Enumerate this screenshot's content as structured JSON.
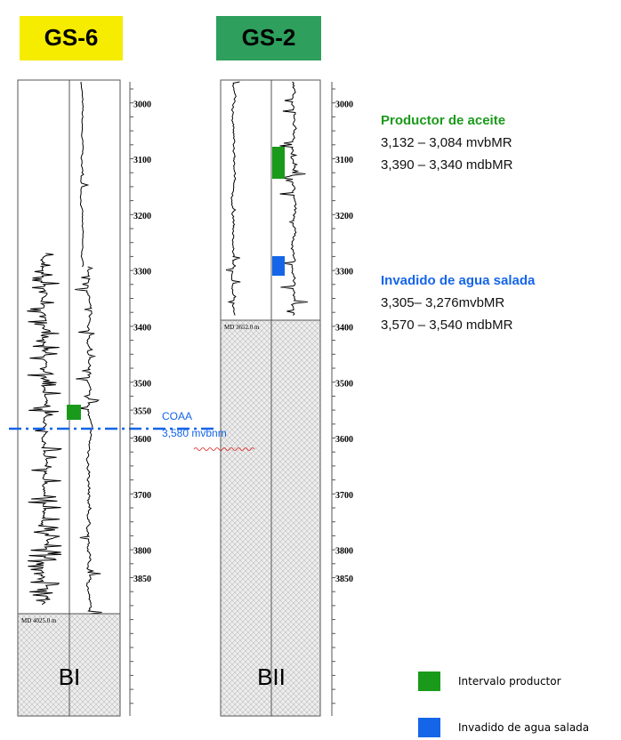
{
  "wells": [
    {
      "name": "GS-6",
      "depths": [
        3000,
        3100,
        3200,
        3300,
        3400,
        3500,
        3550,
        3600,
        3700,
        3800,
        3850
      ],
      "md_label": "MD 4025.0 m",
      "bottom_label": "BI"
    },
    {
      "name": "GS-2",
      "depths": [
        3000,
        3100,
        3200,
        3300,
        3400,
        3500,
        3600,
        3700,
        3800,
        3850
      ],
      "md_label": "MD 3652.0 m",
      "bottom_label": "BII"
    }
  ],
  "contact": {
    "label": "COAA",
    "depth": "3,580 mvbnm"
  },
  "intervals": [
    {
      "title": "Productor de aceite",
      "lines": [
        "3,132 – 3,084 mvbMR",
        "3,390 – 3,340 mdbMR"
      ]
    },
    {
      "title": "Invadido de agua salada",
      "lines": [
        "3,305– 3,276mvbMR",
        "3,570 – 3,540 mdbMR"
      ]
    }
  ],
  "legend": [
    "Intervalo productor",
    "Invadido de agua salada"
  ]
}
